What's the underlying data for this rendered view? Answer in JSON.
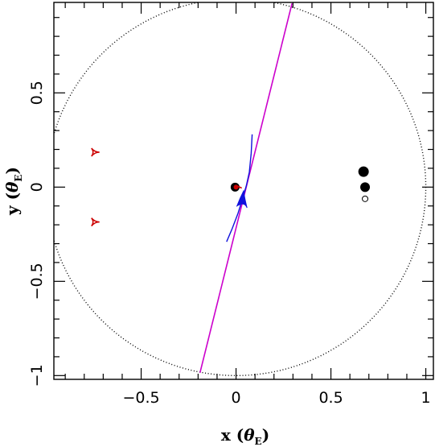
{
  "chart_data": {
    "type": "scatter",
    "xlabel": {
      "prefix": "x (",
      "symbol": "θ",
      "sub": "E",
      "suffix": ")"
    },
    "ylabel": {
      "prefix": "y (",
      "symbol": "θ",
      "sub": "E",
      "suffix": ")"
    },
    "xlim": [
      -0.96,
      1.04
    ],
    "ylim": [
      -1.02,
      0.98
    ],
    "xticks": [
      -0.5,
      0,
      0.5,
      1
    ],
    "yticks": [
      -1,
      -0.5,
      0,
      0.5
    ],
    "xtick_labels": [
      "−0.5",
      "0",
      "0.5",
      "1"
    ],
    "ytick_labels": [
      "−1",
      "−0.5",
      "0",
      "0.5"
    ],
    "minor_step": 0.1,
    "grid": false,
    "einstein_ring": {
      "cx": 0,
      "cy": 0,
      "r": 1,
      "style": "dotted"
    },
    "source_trajectory": {
      "color": "#cc00cc",
      "x": [
        -0.19,
        0.295
      ],
      "y": [
        -0.985,
        0.975
      ]
    },
    "lens_masses": [
      {
        "x": -0.005,
        "y": 0.0,
        "size": "large",
        "color": "#000000"
      },
      {
        "x": 0.0,
        "y": 0.0,
        "size": "small",
        "color": "#cc0000"
      }
    ],
    "images": [
      {
        "x": 0.672,
        "y": 0.082,
        "fill": "#000000",
        "size": "large"
      },
      {
        "x": 0.68,
        "y": 0.0,
        "fill": "#000000",
        "size": "medium"
      },
      {
        "x": 0.68,
        "y": -0.062,
        "fill": "#ffffff",
        "size": "small"
      }
    ],
    "red_caustics": [
      {
        "x": -0.745,
        "y": 0.185
      },
      {
        "x": -0.745,
        "y": -0.185
      }
    ],
    "red_small_caustic": {
      "x": [
        0.0,
        0.015,
        0.03
      ],
      "y": [
        0.008,
        0.002,
        -0.005
      ]
    },
    "blue_caustic": {
      "color": "#1111dd",
      "cusp": [
        0.04,
        -0.02
      ],
      "left_wing": [
        0.005,
        -0.1
      ],
      "right_wing": [
        0.058,
        -0.11
      ],
      "tail": [
        0.045,
        -0.06
      ],
      "outer_curve_x": [
        0.085,
        0.08,
        0.07,
        0.055,
        0.035,
        0.01,
        -0.02,
        -0.05
      ],
      "outer_curve_y": [
        0.28,
        0.18,
        0.08,
        0.01,
        -0.06,
        -0.14,
        -0.22,
        -0.29
      ]
    }
  }
}
